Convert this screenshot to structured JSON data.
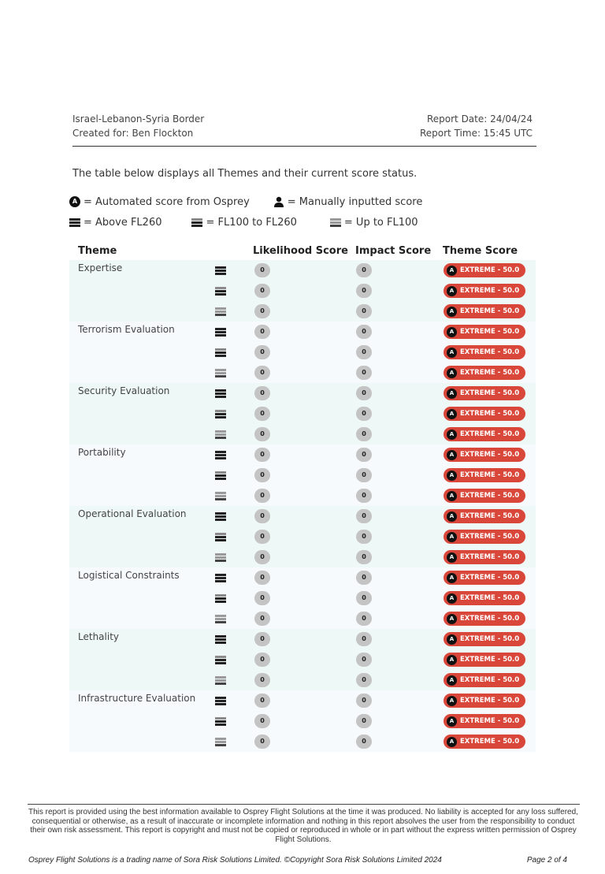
{
  "header": {
    "location": "Israel-Lebanon-Syria Border",
    "created_for": "Created for: Ben Flockton",
    "report_date": "Report Date: 24/04/24",
    "report_time": "Report Time: 15:45 UTC"
  },
  "intro": "The table below displays all Themes and their current score status.",
  "legend": {
    "auto_badge": "A",
    "automated": "= Automated score from Osprey",
    "manual": "= Manually inputted score",
    "above": "= Above FL260",
    "mid": "= FL100 to FL260",
    "low": "= Up to FL100"
  },
  "table": {
    "headers": {
      "theme": "Theme",
      "likelihood": "Likelihood Score",
      "impact": "Impact Score",
      "theme_score": "Theme Score"
    },
    "score_colors": {
      "extreme": "#d9473a",
      "neutral": "#c4c4c4"
    },
    "themes": [
      {
        "name": "Expertise",
        "rows": [
          {
            "level": "above",
            "likelihood": "0",
            "impact": "0",
            "score": "EXTREME - 50.0"
          },
          {
            "level": "mid",
            "likelihood": "0",
            "impact": "0",
            "score": "EXTREME - 50.0"
          },
          {
            "level": "low",
            "likelihood": "0",
            "impact": "0",
            "score": "EXTREME - 50.0"
          }
        ]
      },
      {
        "name": "Terrorism Evaluation",
        "rows": [
          {
            "level": "above",
            "likelihood": "0",
            "impact": "0",
            "score": "EXTREME - 50.0"
          },
          {
            "level": "mid",
            "likelihood": "0",
            "impact": "0",
            "score": "EXTREME - 50.0"
          },
          {
            "level": "low",
            "likelihood": "0",
            "impact": "0",
            "score": "EXTREME - 50.0"
          }
        ]
      },
      {
        "name": "Security Evaluation",
        "rows": [
          {
            "level": "above",
            "likelihood": "0",
            "impact": "0",
            "score": "EXTREME - 50.0"
          },
          {
            "level": "mid",
            "likelihood": "0",
            "impact": "0",
            "score": "EXTREME - 50.0"
          },
          {
            "level": "low",
            "likelihood": "0",
            "impact": "0",
            "score": "EXTREME - 50.0"
          }
        ]
      },
      {
        "name": "Portability",
        "rows": [
          {
            "level": "above",
            "likelihood": "0",
            "impact": "0",
            "score": "EXTREME - 50.0"
          },
          {
            "level": "mid",
            "likelihood": "0",
            "impact": "0",
            "score": "EXTREME - 50.0"
          },
          {
            "level": "low",
            "likelihood": "0",
            "impact": "0",
            "score": "EXTREME - 50.0"
          }
        ]
      },
      {
        "name": "Operational Evaluation",
        "rows": [
          {
            "level": "above",
            "likelihood": "0",
            "impact": "0",
            "score": "EXTREME - 50.0"
          },
          {
            "level": "mid",
            "likelihood": "0",
            "impact": "0",
            "score": "EXTREME - 50.0"
          },
          {
            "level": "low",
            "likelihood": "0",
            "impact": "0",
            "score": "EXTREME - 50.0"
          }
        ]
      },
      {
        "name": "Logistical Constraints",
        "rows": [
          {
            "level": "above",
            "likelihood": "0",
            "impact": "0",
            "score": "EXTREME - 50.0"
          },
          {
            "level": "mid",
            "likelihood": "0",
            "impact": "0",
            "score": "EXTREME - 50.0"
          },
          {
            "level": "low",
            "likelihood": "0",
            "impact": "0",
            "score": "EXTREME - 50.0"
          }
        ]
      },
      {
        "name": "Lethality",
        "rows": [
          {
            "level": "above",
            "likelihood": "0",
            "impact": "0",
            "score": "EXTREME - 50.0"
          },
          {
            "level": "mid",
            "likelihood": "0",
            "impact": "0",
            "score": "EXTREME - 50.0"
          },
          {
            "level": "low",
            "likelihood": "0",
            "impact": "0",
            "score": "EXTREME - 50.0"
          }
        ]
      },
      {
        "name": "Infrastructure Evaluation",
        "rows": [
          {
            "level": "above",
            "likelihood": "0",
            "impact": "0",
            "score": "EXTREME - 50.0"
          },
          {
            "level": "mid",
            "likelihood": "0",
            "impact": "0",
            "score": "EXTREME - 50.0"
          },
          {
            "level": "low",
            "likelihood": "0",
            "impact": "0",
            "score": "EXTREME - 50.0"
          }
        ]
      }
    ]
  },
  "footer": {
    "disclaimer": "This report is provided using the best information available to Osprey Flight Solutions at the time it was produced.  No liability is accepted for any loss suffered, consequential or otherwise, as a result of inaccurate or incomplete information and nothing in this report absolves the user from the responsibility to conduct their own risk assessment.  This report is copyright and must not be copied or reproduced in whole or in part without the express written permission of Osprey Flight Solutions.",
    "copyright": "Osprey Flight Solutions is a trading name of Sora Risk Solutions Limited. ©Copyright Sora Risk Solutions Limited 2024",
    "page": "Page 2 of 4"
  }
}
